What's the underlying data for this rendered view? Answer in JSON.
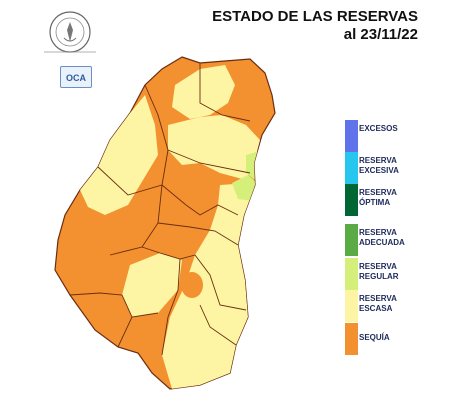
{
  "header": {
    "title_line1": "ESTADO DE LAS RESERVAS",
    "title_line2": "al 23/11/22"
  },
  "logos": {
    "seal_text_top": "BOLSA DE CEREALES",
    "seal_text_bottom": "DE ENTRE RÍOS",
    "oca_text": "OCA"
  },
  "colors": {
    "sequia": "#f3902f",
    "escasa": "#fdf5a4",
    "regular": "#d5f07a",
    "adecuada": "#5aaa46",
    "optima": "#006633",
    "excesiva": "#26c6ef",
    "excesos": "#6173ea",
    "border": "#6b2d10"
  },
  "legend": [
    {
      "line1": "EXCESOS",
      "line2": "",
      "color": "#6173ea"
    },
    {
      "line1": "RESERVA",
      "line2": "EXCESIVA",
      "color": "#26c6ef"
    },
    {
      "line1": "RESERVA",
      "line2": "ÓPTIMA",
      "color": "#006633"
    },
    {
      "line1": "RESERVA",
      "line2": "ADECUADA",
      "color": "#5aaa46"
    },
    {
      "line1": "RESERVA",
      "line2": "REGULAR",
      "color": "#d5f07a"
    },
    {
      "line1": "RESERVA",
      "line2": "ESCASA",
      "color": "#fdf5a4"
    },
    {
      "line1": "SEQUÍA",
      "line2": "",
      "color": "#f3902f"
    }
  ]
}
